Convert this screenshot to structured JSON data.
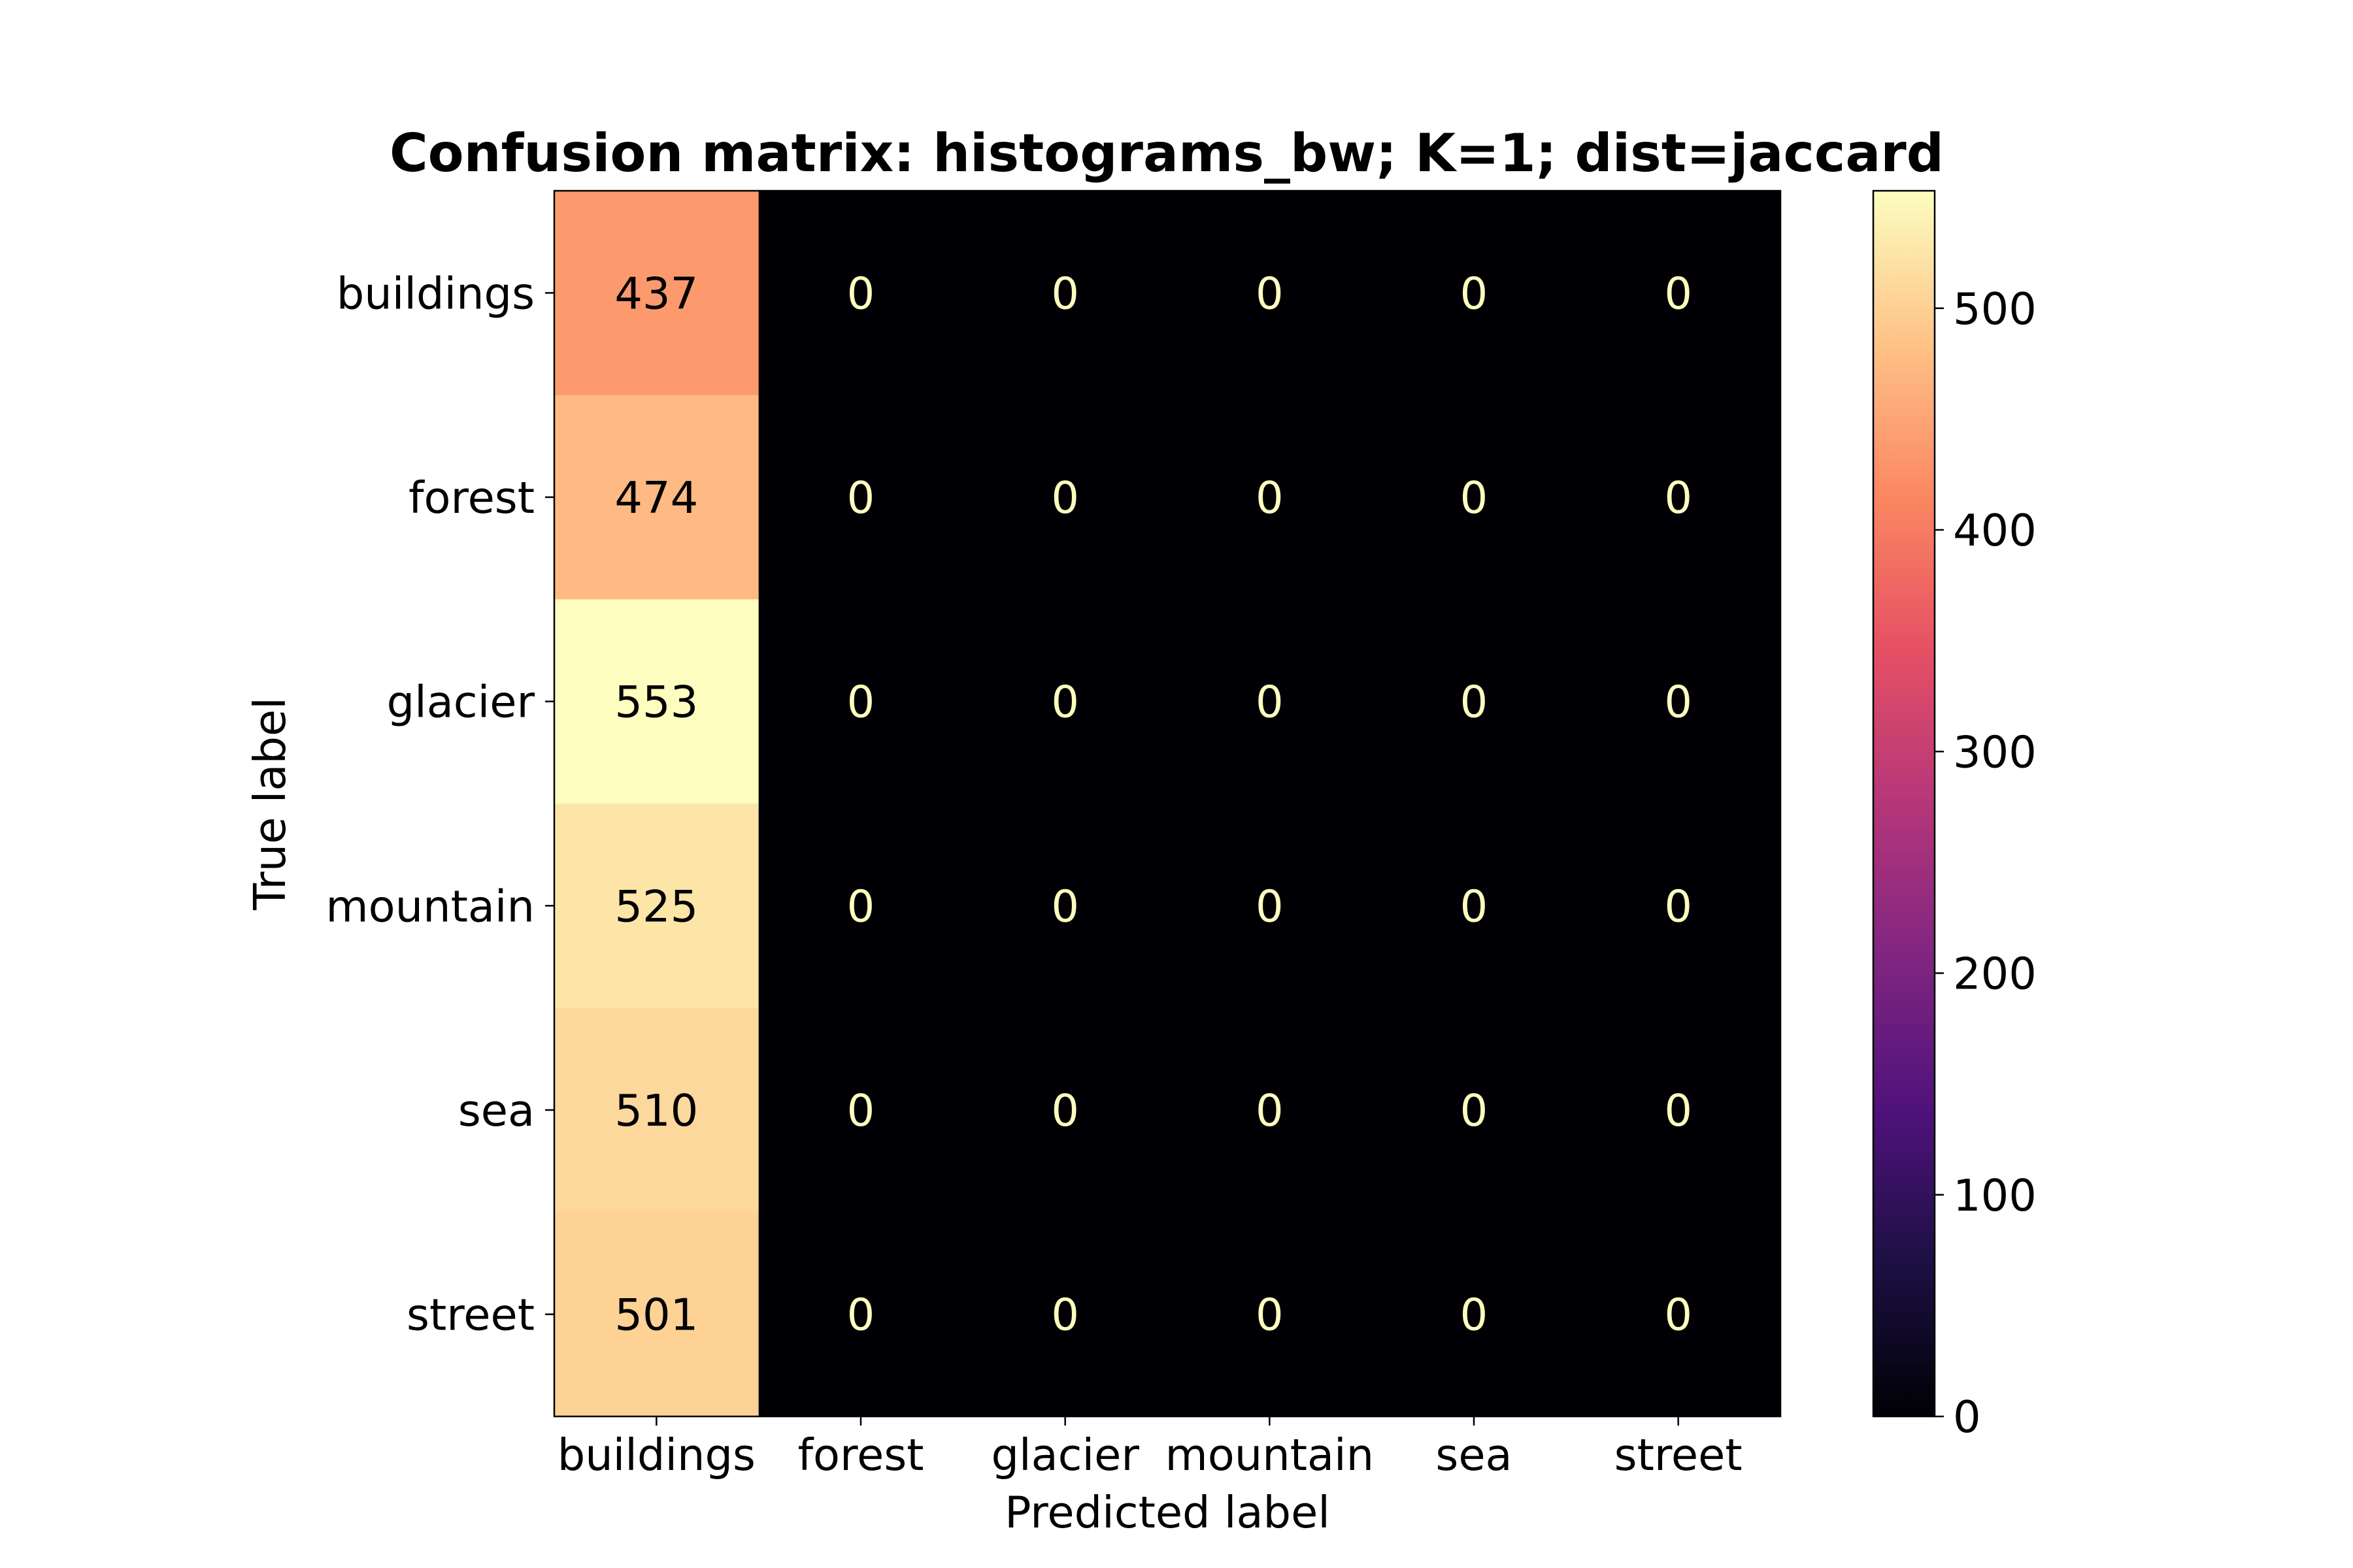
{
  "chart_data": {
    "type": "heatmap",
    "title": "Confusion matrix: histograms_bw; K=1; dist=jaccard",
    "xlabel": "Predicted label",
    "ylabel": "True label",
    "x_categories": [
      "buildings",
      "forest",
      "glacier",
      "mountain",
      "sea",
      "street"
    ],
    "y_categories": [
      "buildings",
      "forest",
      "glacier",
      "mountain",
      "sea",
      "street"
    ],
    "values": [
      [
        437,
        0,
        0,
        0,
        0,
        0
      ],
      [
        474,
        0,
        0,
        0,
        0,
        0
      ],
      [
        553,
        0,
        0,
        0,
        0,
        0
      ],
      [
        525,
        0,
        0,
        0,
        0,
        0
      ],
      [
        510,
        0,
        0,
        0,
        0,
        0
      ],
      [
        501,
        0,
        0,
        0,
        0,
        0
      ]
    ],
    "colormap": "magma",
    "colorbar": {
      "range": [
        0,
        553
      ],
      "ticks": [
        0,
        100,
        200,
        300,
        400,
        500
      ]
    },
    "grid": false
  }
}
